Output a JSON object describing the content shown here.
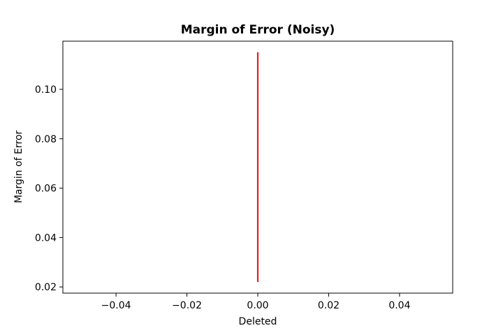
{
  "chart_data": {
    "type": "line",
    "title": "Margin of Error (Noisy)",
    "xlabel": "Deleted",
    "ylabel": "Margin of Error",
    "xlim": [
      -0.055,
      0.055
    ],
    "ylim": [
      0.0175,
      0.1195
    ],
    "xticks": [
      -0.04,
      -0.02,
      0.0,
      0.02,
      0.04
    ],
    "xtick_labels": [
      "−0.04",
      "−0.02",
      "0.00",
      "0.02",
      "0.04"
    ],
    "yticks": [
      0.02,
      0.04,
      0.06,
      0.08,
      0.1
    ],
    "ytick_labels": [
      "0.02",
      "0.04",
      "0.06",
      "0.08",
      "0.10"
    ],
    "grid": false,
    "series": [
      {
        "color": "#e3211c",
        "points": [
          {
            "x": 0.0,
            "y": 0.022
          },
          {
            "x": 0.0,
            "y": 0.115
          }
        ]
      }
    ]
  }
}
